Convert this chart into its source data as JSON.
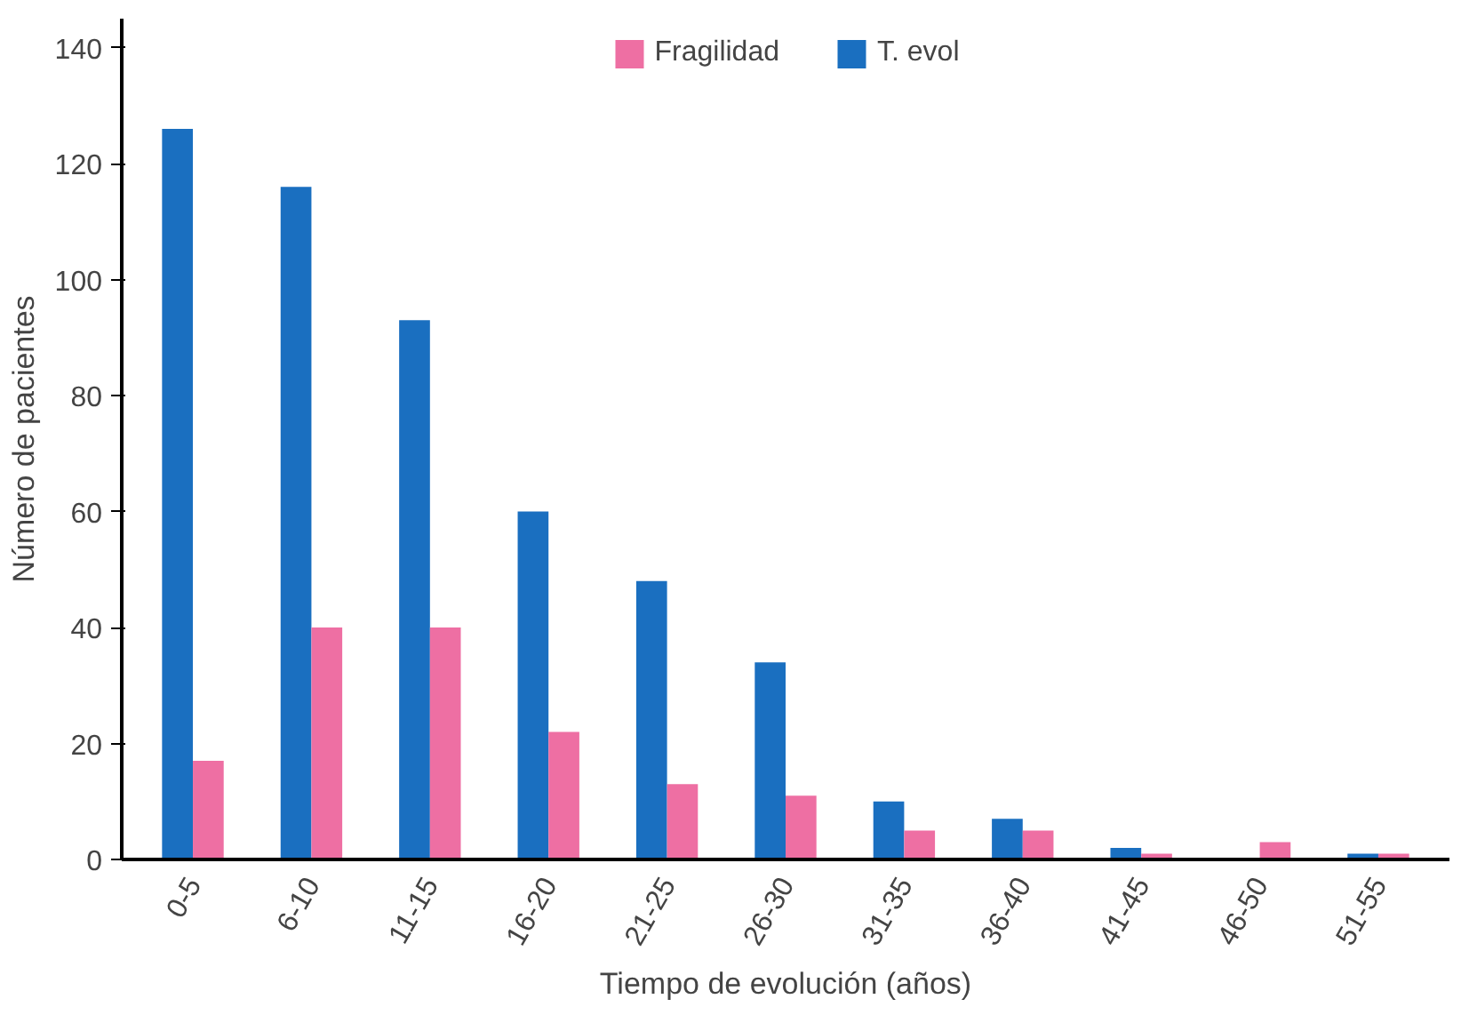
{
  "chart_data": {
    "type": "bar",
    "xlabel": "Tiempo de evolución (años)",
    "ylabel": "Número de pacientes",
    "categories": [
      "0-5",
      "6-10",
      "11-15",
      "16-20",
      "21-25",
      "26-30",
      "31-35",
      "36-40",
      "41-45",
      "46-50",
      "51-55"
    ],
    "series": [
      {
        "name": "T. evol",
        "color": "#1a6fc0",
        "values": [
          126,
          116,
          93,
          60,
          48,
          34,
          10,
          7,
          2,
          0,
          1
        ]
      },
      {
        "name": "Fragilidad",
        "color": "#ee6fa3",
        "values": [
          17,
          40,
          40,
          22,
          13,
          11,
          5,
          5,
          1,
          3,
          1
        ]
      }
    ],
    "ylim": [
      0,
      145
    ],
    "yticks": [
      0,
      20,
      40,
      60,
      80,
      100,
      120,
      140
    ],
    "grid": false,
    "legend": "top"
  }
}
